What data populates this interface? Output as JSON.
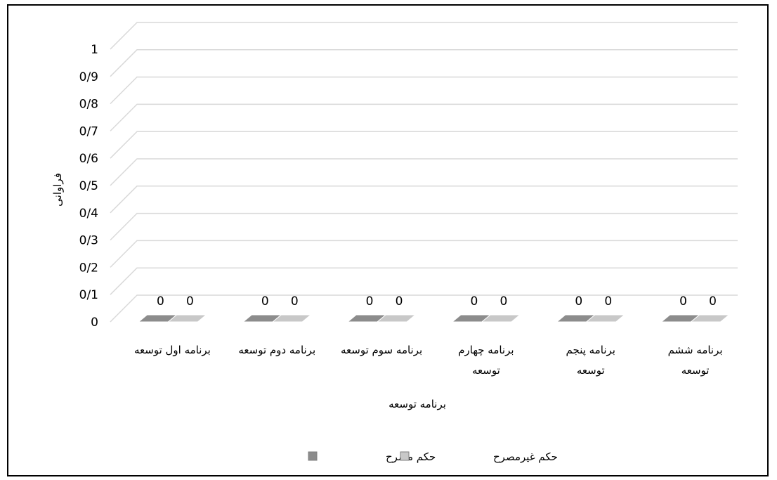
{
  "chart_data": {
    "type": "bar",
    "style": "3d-clustered-column",
    "title": "",
    "xlabel": "برنامه توسعه",
    "ylabel": "فراوانی",
    "ylim": [
      0,
      1
    ],
    "yticks": [
      "0",
      "0/1",
      "0/2",
      "0/3",
      "0/4",
      "0/5",
      "0/6",
      "0/7",
      "0/8",
      "0/9",
      "1"
    ],
    "grid": true,
    "legend_position": "bottom",
    "categories": [
      [
        "برنامه اول توسعه"
      ],
      [
        "برنامه دوم توسعه"
      ],
      [
        "برنامه سوم توسعه"
      ],
      [
        "برنامه چهارم",
        "توسعه"
      ],
      [
        "برنامه پنجم",
        "توسعه"
      ],
      [
        "برنامه ششم",
        "توسعه"
      ]
    ],
    "series": [
      {
        "name": "حکم مصرح",
        "values": [
          0,
          0,
          0,
          0,
          0,
          0
        ],
        "color": "#8c8c8c"
      },
      {
        "name": "حکم غیرمصرح",
        "values": [
          0,
          0,
          0,
          0,
          0,
          0
        ],
        "color": "#c8c8c8"
      }
    ],
    "data_labels": [
      "0",
      "0"
    ]
  }
}
